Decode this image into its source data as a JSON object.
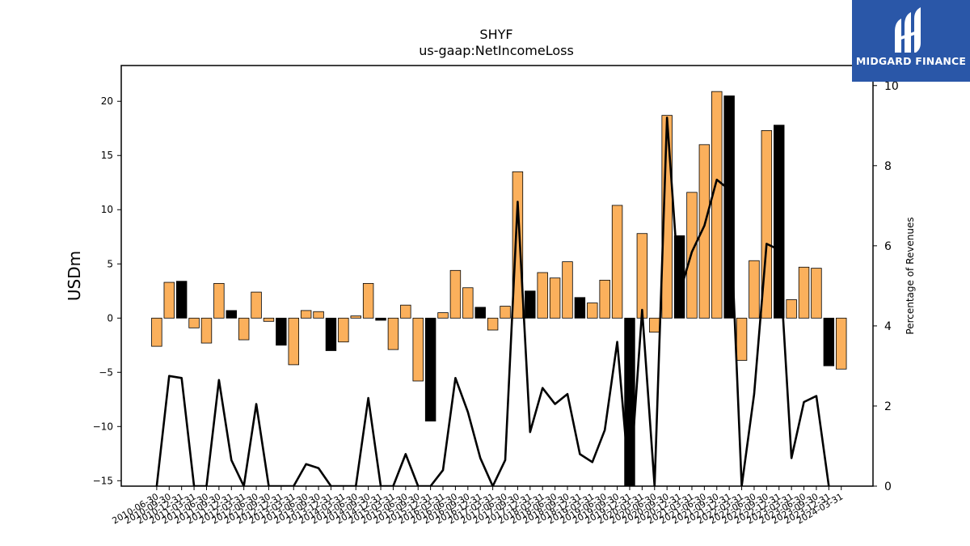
{
  "chart_data": {
    "type": "bar+line",
    "title": "SHYF",
    "subtitle": "us-gaap:NetIncomeLoss",
    "ylabel": "USDm",
    "y2label": "Percentage of Revenues",
    "ylim": [
      -15.5,
      23.3
    ],
    "y2lim": [
      0,
      10.5
    ],
    "yticks": [
      -15,
      -10,
      -5,
      0,
      5,
      10,
      15,
      20
    ],
    "y2ticks": [
      0,
      2,
      4,
      6,
      8,
      10
    ],
    "colors": {
      "annual": "#000000",
      "quarter": "#fbb05c",
      "line": "#000000"
    },
    "categories": [
      "2010-06-30",
      "2010-09-30",
      "2010-12-31",
      "2011-03-31",
      "2011-06-30",
      "2011-09-30",
      "2011-12-31",
      "2012-03-31",
      "2012-06-30",
      "2012-09-30",
      "2012-12-31",
      "2013-03-31",
      "2013-06-30",
      "2013-09-30",
      "2013-12-31",
      "2014-03-31",
      "2014-06-30",
      "2014-09-30",
      "2014-12-31",
      "2015-03-31",
      "2015-06-30",
      "2015-09-30",
      "2015-12-31",
      "2016-03-31",
      "2016-06-30",
      "2016-09-30",
      "2016-12-31",
      "2017-03-31",
      "2017-06-30",
      "2017-09-30",
      "2017-12-31",
      "2018-03-31",
      "2018-06-30",
      "2018-09-30",
      "2018-12-31",
      "2019-03-31",
      "2019-06-30",
      "2019-09-30",
      "2019-12-31",
      "2020-03-31",
      "2020-06-30",
      "2020-09-30",
      "2020-12-31",
      "2021-03-31",
      "2021-06-30",
      "2021-09-30",
      "2021-12-31",
      "2022-03-31",
      "2022-06-30",
      "2022-09-30",
      "2022-12-31",
      "2023-03-31",
      "2023-06-30",
      "2023-09-30",
      "2023-12-31",
      "2024-03-31"
    ],
    "values": [
      -2.6,
      3.3,
      3.4,
      -0.9,
      -2.3,
      3.2,
      0.7,
      -2.0,
      2.4,
      -0.3,
      -2.5,
      -4.3,
      0.7,
      0.6,
      -3.0,
      -2.2,
      0.2,
      3.2,
      -0.2,
      -2.9,
      1.2,
      -5.8,
      -9.5,
      0.5,
      4.4,
      2.8,
      1.0,
      -1.1,
      1.1,
      13.5,
      2.5,
      4.2,
      3.7,
      5.2,
      1.9,
      1.4,
      3.5,
      10.4,
      -15.5,
      7.8,
      -1.3,
      18.7,
      7.6,
      11.6,
      16.0,
      20.9,
      20.5,
      -3.9,
      5.3,
      17.3,
      17.8,
      1.7,
      4.7,
      4.6,
      -4.4,
      -4.7
    ],
    "annual": [
      false,
      false,
      true,
      false,
      false,
      false,
      true,
      false,
      false,
      false,
      true,
      false,
      false,
      false,
      true,
      false,
      false,
      false,
      true,
      false,
      false,
      false,
      true,
      false,
      false,
      false,
      true,
      false,
      false,
      false,
      true,
      false,
      false,
      false,
      true,
      false,
      false,
      false,
      true,
      false,
      false,
      false,
      true,
      false,
      false,
      false,
      true,
      false,
      false,
      false,
      true,
      false,
      false,
      false,
      true,
      false
    ],
    "pct_of_revenues": [
      0,
      2.75,
      2.7,
      0,
      0,
      2.65,
      0.65,
      0,
      2.05,
      0,
      0,
      0,
      0.55,
      0.45,
      0,
      0,
      0,
      2.2,
      0,
      0,
      0.8,
      0,
      0,
      0.4,
      2.7,
      1.85,
      0.7,
      0,
      0.65,
      7.1,
      1.35,
      2.45,
      2.05,
      2.3,
      0.8,
      0.6,
      1.4,
      3.6,
      0,
      4.4,
      0,
      9.2,
      4.8,
      5.85,
      6.5,
      7.65,
      7.4,
      0,
      2.3,
      6.05,
      5.9,
      0.7,
      2.1,
      2.25,
      0,
      null
    ]
  },
  "logo": {
    "text": "MIDGARD FINANCE"
  }
}
